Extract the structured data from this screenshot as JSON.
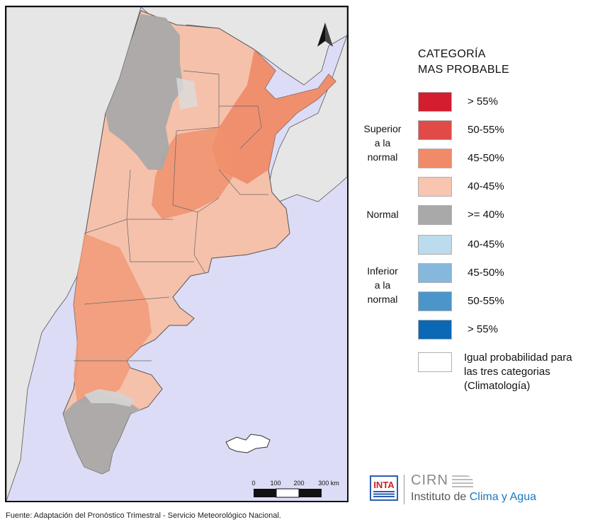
{
  "legend": {
    "title_line1": "CATEGORÍA",
    "title_line2": "MAS PROBABLE",
    "groups": {
      "superior": [
        "Superior",
        "a la",
        "normal"
      ],
      "normal": "Normal",
      "inferior": [
        "Inferior",
        "a la",
        "normal"
      ]
    },
    "items": [
      {
        "label": "> 55%",
        "color": "#d41d2e"
      },
      {
        "label": "50-55%",
        "color": "#e04b47"
      },
      {
        "label": "45-50%",
        "color": "#f08a67"
      },
      {
        "label": "40-45%",
        "color": "#f7c5b0"
      },
      {
        "label": ">= 40%",
        "color": "#a9a9a9"
      },
      {
        "label": "40-45%",
        "color": "#bcdbec"
      },
      {
        "label": "45-50%",
        "color": "#85b8dc"
      },
      {
        "label": "50-55%",
        "color": "#4b95cb"
      },
      {
        "label": "> 55%",
        "color": "#0c67b4"
      }
    ],
    "igual_line1": "Igual probabilidad para",
    "igual_line2": "las tres categorias",
    "igual_line3": "(Climatología)"
  },
  "scale": {
    "ticks": [
      "0",
      "100",
      "200",
      "300 km"
    ]
  },
  "colors": {
    "sea": "#dcdcf6",
    "land_neighbors": "#e8e8e8",
    "outline": "#555555"
  },
  "footer": "Fuente: Adaptación del Pronóstico Trimestral - Servicio Meteorológico Nacional.",
  "logos": {
    "inta": "INTA",
    "cirn": "CIRN",
    "institute_part1": "Instituto de ",
    "institute_part2": "Clima y Agua"
  },
  "icons": {
    "north_arrow": "north-arrow-icon"
  }
}
